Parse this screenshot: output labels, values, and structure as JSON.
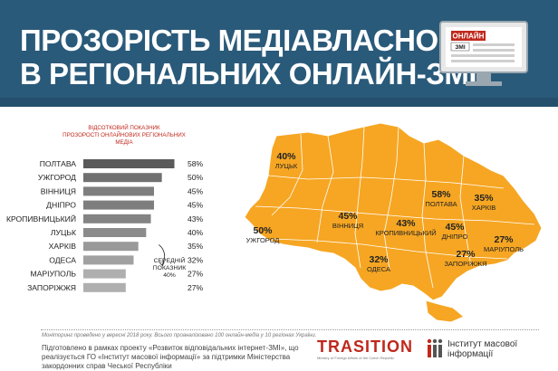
{
  "header": {
    "title_line1": "ПРОЗОРІСТЬ МЕДІАВЛАСНОСТІ",
    "title_line2": "В РЕГІОНАЛЬНИХ ОНЛАЙН-ЗМІ",
    "monitor_label_top": "ОНЛАЙН",
    "monitor_label_bottom": "ЗМІ"
  },
  "chart_data": [
    {
      "type": "bar",
      "orientation": "horizontal",
      "title": "ВІДСОТКОВИЙ ПОКАЗНИК ПРОЗОРОСТІ ОНЛАЙНОВИХ РЕГІОНАЛЬНИХ МЕДІА",
      "categories": [
        "ПОЛТАВА",
        "УЖГОРОД",
        "ВІННИЦЯ",
        "ДНІПРО",
        "КРОПИВНИЦЬКИЙ",
        "ЛУЦЬК",
        "ХАРКІВ",
        "ОДЕСА",
        "МАРІУПОЛЬ",
        "ЗАПОРІЖЖЯ"
      ],
      "values": [
        58,
        50,
        45,
        45,
        43,
        40,
        35,
        32,
        27,
        27
      ],
      "value_labels": [
        "58%",
        "50%",
        "45%",
        "45%",
        "43%",
        "40%",
        "35%",
        "32%",
        "27%",
        "27%"
      ],
      "xlim": [
        0,
        60
      ],
      "grid": false,
      "annotation": {
        "text_line1": "СЕРЕДНІЙ",
        "text_line2": "ПОКАЗНИК",
        "value": 40,
        "value_label": "40%"
      }
    },
    {
      "type": "map",
      "points": [
        {
          "value_label": "40%",
          "city": "ЛУЦЬК"
        },
        {
          "value_label": "50%",
          "city": "УЖГОРОД"
        },
        {
          "value_label": "45%",
          "city": "ВІННИЦЯ"
        },
        {
          "value_label": "32%",
          "city": "ОДЕСА"
        },
        {
          "value_label": "43%",
          "city": "КРОПИВНИЦЬКИЙ"
        },
        {
          "value_label": "58%",
          "city": "ПОЛТАВА"
        },
        {
          "value_label": "35%",
          "city": "ХАРКІВ"
        },
        {
          "value_label": "45%",
          "city": "ДНІПРО"
        },
        {
          "value_label": "27%",
          "city": "ЗАПОРІЖЖЯ"
        },
        {
          "value_label": "27%",
          "city": "МАРІУПОЛЬ"
        }
      ]
    }
  ],
  "colors": {
    "header_bg": "#2a5a7a",
    "bar_dark": "#5a5a5a",
    "bar_mid": "#8a8a8a",
    "bar_light": "#b3b3b3",
    "map_fill": "#f6a623",
    "accent_red": "#c0281c"
  },
  "footer": {
    "footnote": "Моніторинг проведено у вересні 2018 року. Всього проаналізовано 100 онлайн-медіа у 10 регіонах України.",
    "text": "Підготовлено в рамках проекту «Розвиток відповідальних інтернет-ЗМІ», що реалізується ГО «Інститут масової інформації» за підтримки Міністерства закордонних справ Чеської Республіки",
    "transition_logo": "TRASITION",
    "transition_sub": "Ministry of Foreign Affairs of the Czech Republic",
    "imi_line1": "Інститут масової",
    "imi_line2": "інформації"
  }
}
